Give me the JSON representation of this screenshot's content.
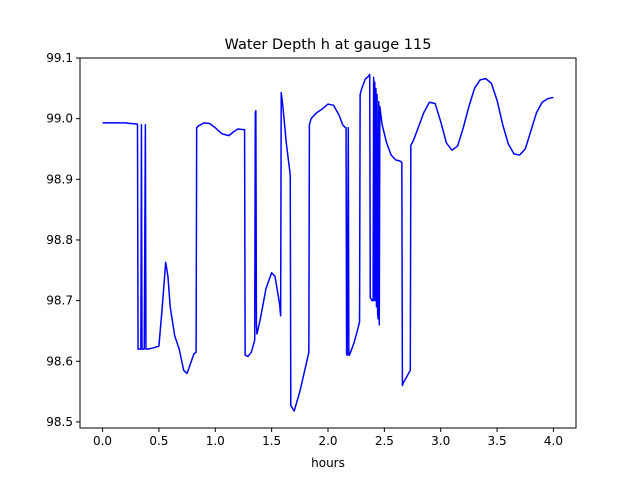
{
  "chart_data": {
    "type": "line",
    "title": "Water Depth h at gauge 115",
    "xlabel": "hours",
    "ylabel": "",
    "xlim": [
      -0.2,
      4.2
    ],
    "ylim": [
      98.49,
      99.1
    ],
    "xticks": [
      0.0,
      0.5,
      1.0,
      1.5,
      2.0,
      2.5,
      3.0,
      3.5,
      4.0
    ],
    "xtick_labels": [
      "0.0",
      "0.5",
      "1.0",
      "1.5",
      "2.0",
      "2.5",
      "3.0",
      "3.5",
      "4.0"
    ],
    "yticks": [
      98.5,
      98.6,
      98.7,
      98.8,
      98.9,
      99.0,
      99.1
    ],
    "ytick_labels": [
      "98.5",
      "98.6",
      "98.7",
      "98.8",
      "98.9",
      "99.0",
      "99.1"
    ],
    "grid": false,
    "legend": "none",
    "series": [
      {
        "color": "#0000ff",
        "x": [
          0.0,
          0.2,
          0.31,
          0.315,
          0.33,
          0.34,
          0.345,
          0.35,
          0.36,
          0.37,
          0.38,
          0.385,
          0.39,
          0.4,
          0.45,
          0.5,
          0.53,
          0.56,
          0.58,
          0.6,
          0.64,
          0.68,
          0.72,
          0.75,
          0.78,
          0.81,
          0.83,
          0.835,
          0.85,
          0.9,
          0.95,
          1.0,
          1.06,
          1.12,
          1.16,
          1.2,
          1.25,
          1.26,
          1.265,
          1.29,
          1.32,
          1.35,
          1.355,
          1.36,
          1.365,
          1.37,
          1.4,
          1.45,
          1.5,
          1.53,
          1.57,
          1.58,
          1.585,
          1.6,
          1.63,
          1.66,
          1.665,
          1.67,
          1.7,
          1.75,
          1.8,
          1.83,
          1.835,
          1.85,
          1.9,
          1.95,
          2.0,
          2.05,
          2.1,
          2.13,
          2.155,
          2.16,
          2.165,
          2.17,
          2.18,
          2.185,
          2.19,
          2.2,
          2.23,
          2.26,
          2.28,
          2.285,
          2.3,
          2.33,
          2.36,
          2.37,
          2.375,
          2.39,
          2.4,
          2.405,
          2.41,
          2.415,
          2.42,
          2.425,
          2.43,
          2.435,
          2.44,
          2.445,
          2.45,
          2.455,
          2.46,
          2.48,
          2.52,
          2.56,
          2.6,
          2.64,
          2.655,
          2.66,
          2.67,
          2.7,
          2.73,
          2.735,
          2.76,
          2.8,
          2.85,
          2.9,
          2.95,
          3.0,
          3.05,
          3.1,
          3.15,
          3.2,
          3.25,
          3.3,
          3.35,
          3.4,
          3.45,
          3.5,
          3.55,
          3.6,
          3.65,
          3.7,
          3.75,
          3.8,
          3.85,
          3.9,
          3.95,
          4.0
        ],
        "y": [
          98.993,
          98.993,
          98.991,
          98.62,
          98.62,
          98.62,
          98.99,
          98.62,
          98.62,
          98.62,
          98.99,
          98.62,
          98.62,
          98.62,
          98.622,
          98.625,
          98.69,
          98.763,
          98.74,
          98.69,
          98.642,
          98.62,
          98.585,
          98.58,
          98.596,
          98.612,
          98.615,
          98.985,
          98.988,
          98.993,
          98.992,
          98.985,
          98.975,
          98.972,
          98.978,
          98.983,
          98.982,
          98.982,
          98.61,
          98.608,
          98.615,
          98.635,
          99.01,
          99.013,
          98.66,
          98.645,
          98.67,
          98.72,
          98.746,
          98.74,
          98.695,
          98.675,
          99.043,
          99.02,
          98.96,
          98.915,
          98.905,
          98.527,
          98.518,
          98.55,
          98.59,
          98.615,
          98.99,
          99.0,
          99.01,
          99.016,
          99.024,
          99.022,
          99.005,
          98.99,
          98.985,
          98.985,
          98.612,
          98.61,
          98.985,
          98.61,
          98.61,
          98.615,
          98.63,
          98.65,
          98.665,
          99.04,
          99.05,
          99.065,
          99.07,
          99.073,
          98.705,
          98.7,
          98.7,
          99.068,
          98.7,
          99.06,
          98.7,
          99.05,
          98.69,
          99.04,
          98.68,
          98.67,
          99.028,
          98.66,
          99.02,
          98.99,
          98.96,
          98.94,
          98.932,
          98.93,
          98.928,
          98.56,
          98.565,
          98.575,
          98.585,
          98.956,
          98.965,
          98.985,
          99.01,
          99.027,
          99.025,
          98.995,
          98.96,
          98.948,
          98.955,
          98.985,
          99.02,
          99.05,
          99.064,
          99.066,
          99.058,
          99.03,
          98.99,
          98.958,
          98.942,
          98.94,
          98.95,
          98.98,
          99.01,
          99.027,
          99.033,
          99.035
        ]
      }
    ]
  }
}
